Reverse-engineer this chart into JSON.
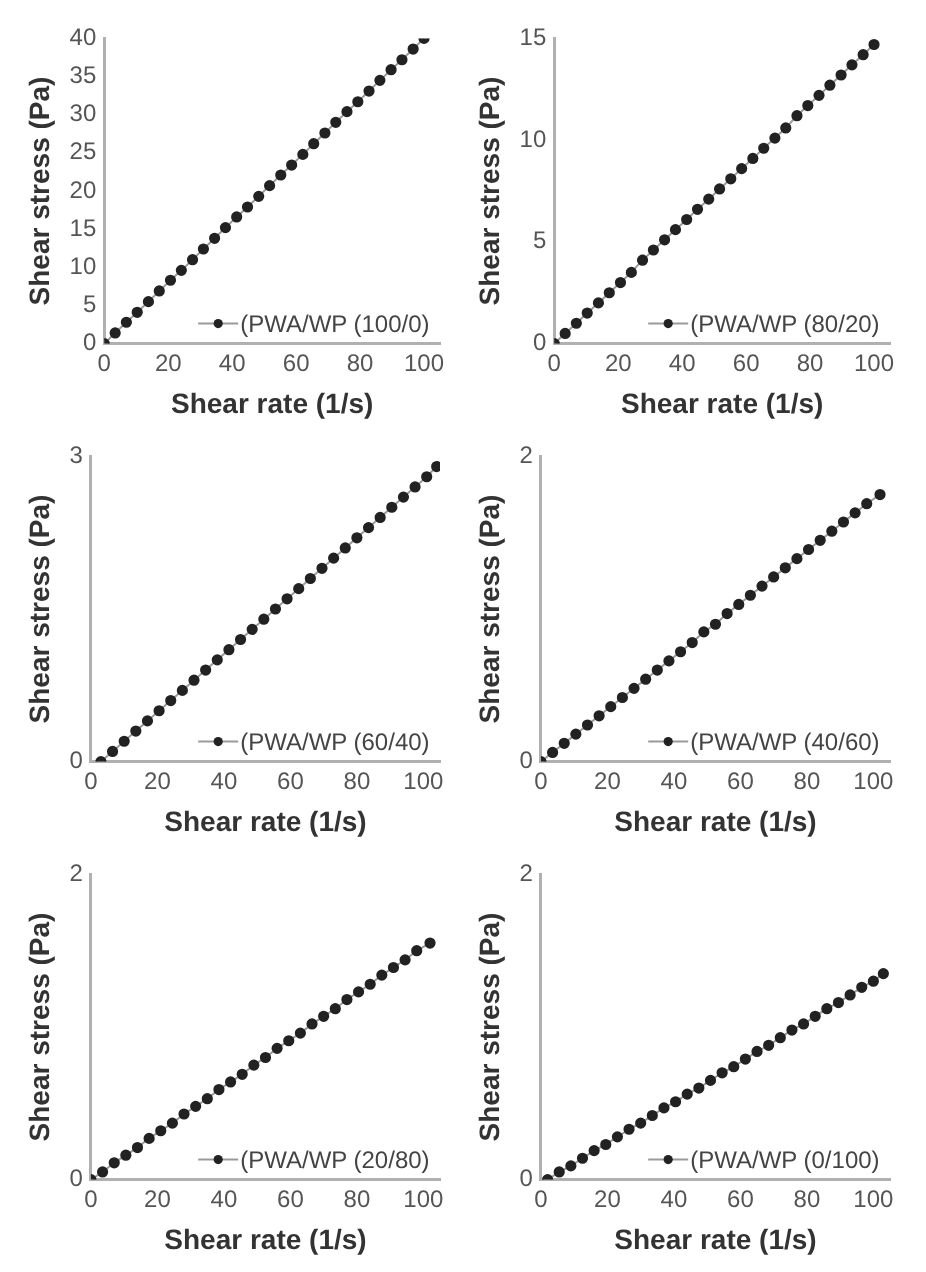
{
  "chart_data": [
    {
      "type": "line",
      "xlabel": "Shear rate (1/s)",
      "ylabel": "Shear stress (Pa)",
      "x": [
        0,
        3.4,
        6.9,
        10.3,
        13.8,
        17.2,
        20.7,
        24.1,
        27.6,
        31,
        34.5,
        37.9,
        41.4,
        44.8,
        48.3,
        51.7,
        55.2,
        58.6,
        62.1,
        65.5,
        69,
        72.4,
        75.9,
        79.3,
        82.8,
        86.2,
        89.7,
        93.1,
        96.6,
        100
      ],
      "series": [
        {
          "name": "(PWA/WP (100/0)",
          "color": "#222222",
          "values": [
            0,
            1.4,
            2.8,
            4.1,
            5.5,
            6.9,
            8.3,
            9.6,
            11,
            12.4,
            13.8,
            15.2,
            16.6,
            17.9,
            19.3,
            20.7,
            22.1,
            23.4,
            24.8,
            26.2,
            27.6,
            29,
            30.4,
            31.7,
            33.1,
            34.5,
            35.9,
            37.2,
            38.6,
            40
          ]
        }
      ],
      "xlim": [
        0,
        105
      ],
      "xticks": [
        0,
        20,
        40,
        60,
        80,
        100
      ],
      "ylim": [
        0,
        40
      ],
      "yticks": [
        0,
        5,
        10,
        15,
        20,
        25,
        30,
        35,
        40
      ],
      "grid": false,
      "legend": "bottom right",
      "marker": "circle"
    },
    {
      "type": "line",
      "xlabel": "Shear rate (1/s)",
      "ylabel": "Shear stress (Pa)",
      "x": [
        0,
        3.4,
        6.9,
        10.3,
        13.8,
        17.2,
        20.7,
        24.1,
        27.6,
        31,
        34.5,
        37.9,
        41.4,
        44.8,
        48.3,
        51.7,
        55.2,
        58.6,
        62.1,
        65.5,
        69,
        72.4,
        75.9,
        79.3,
        82.8,
        86.2,
        89.7,
        93.1,
        96.6,
        100
      ],
      "series": [
        {
          "name": "(PWA/WP (80/20)",
          "color": "#222222",
          "values": [
            0,
            0.5,
            1,
            1.5,
            2,
            2.5,
            3,
            3.5,
            4.1,
            4.6,
            5.1,
            5.6,
            6.1,
            6.6,
            7.1,
            7.6,
            8.1,
            8.6,
            9.1,
            9.6,
            10.1,
            10.6,
            11.2,
            11.7,
            12.2,
            12.7,
            13.2,
            13.7,
            14.2,
            14.7
          ]
        }
      ],
      "xlim": [
        0,
        105
      ],
      "xticks": [
        0,
        20,
        40,
        60,
        80,
        100
      ],
      "ylim": [
        0,
        15
      ],
      "yticks": [
        0,
        5,
        10,
        15
      ],
      "grid": false,
      "legend": "bottom right",
      "marker": "circle"
    },
    {
      "type": "line",
      "xlabel": "Shear rate (1/s)",
      "ylabel": "Shear stress (Pa)",
      "x": [
        3,
        6.5,
        10,
        13.5,
        17,
        20.5,
        24,
        27.5,
        31,
        34.5,
        38,
        41.5,
        45,
        48.5,
        52,
        55.5,
        59,
        62.5,
        66,
        69.5,
        73,
        76.5,
        80,
        83.5,
        87,
        90.5,
        94,
        97.5,
        101,
        104
      ],
      "series": [
        {
          "name": "(PWA/WP (60/40)",
          "color": "#222222",
          "values": [
            0,
            0.1,
            0.2,
            0.3,
            0.4,
            0.5,
            0.6,
            0.7,
            0.8,
            0.9,
            1,
            1.1,
            1.2,
            1.3,
            1.4,
            1.5,
            1.6,
            1.7,
            1.8,
            1.9,
            2,
            2.1,
            2.2,
            2.3,
            2.4,
            2.5,
            2.6,
            2.7,
            2.8,
            2.9
          ]
        }
      ],
      "xlim": [
        0,
        105
      ],
      "xticks": [
        0,
        20,
        40,
        60,
        80,
        100
      ],
      "ylim": [
        0,
        3
      ],
      "yticks": [
        0,
        3
      ],
      "grid": false,
      "legend": "bottom right",
      "marker": "circle"
    },
    {
      "type": "line",
      "xlabel": "Shear rate (1/s)",
      "ylabel": "Shear stress (Pa)",
      "x": [
        0,
        3.5,
        7,
        10.5,
        14,
        17.5,
        21,
        24.5,
        28,
        31.5,
        35,
        38.5,
        42,
        45.5,
        49,
        52.5,
        56,
        59.5,
        63,
        66.5,
        70,
        73.5,
        77,
        80.5,
        84,
        87.5,
        91,
        94.5,
        98,
        102
      ],
      "series": [
        {
          "name": "(PWA/WP (40/60)",
          "color": "#222222",
          "values": [
            0,
            0.06,
            0.12,
            0.18,
            0.24,
            0.3,
            0.36,
            0.42,
            0.48,
            0.54,
            0.6,
            0.66,
            0.72,
            0.78,
            0.85,
            0.9,
            0.97,
            1.03,
            1.09,
            1.15,
            1.21,
            1.27,
            1.33,
            1.39,
            1.45,
            1.51,
            1.57,
            1.63,
            1.69,
            1.75
          ]
        }
      ],
      "xlim": [
        0,
        105
      ],
      "xticks": [
        0,
        20,
        40,
        60,
        80,
        100
      ],
      "ylim": [
        0,
        2
      ],
      "yticks": [
        0,
        2
      ],
      "grid": false,
      "legend": "bottom right",
      "marker": "circle"
    },
    {
      "type": "line",
      "xlabel": "Shear rate (1/s)",
      "ylabel": "Shear stress (Pa)",
      "x": [
        0,
        3.5,
        7,
        10.5,
        14,
        17.5,
        21,
        24.5,
        28,
        31.5,
        35,
        38.5,
        42,
        45.5,
        49,
        52.5,
        56,
        59.5,
        63,
        66.5,
        70,
        73.5,
        77,
        80.5,
        84,
        87.5,
        91,
        94.5,
        98,
        102
      ],
      "series": [
        {
          "name": "(PWA/WP (20/80)",
          "color": "#222222",
          "values": [
            0,
            0.05,
            0.11,
            0.16,
            0.21,
            0.27,
            0.32,
            0.37,
            0.43,
            0.48,
            0.53,
            0.59,
            0.64,
            0.69,
            0.75,
            0.8,
            0.86,
            0.91,
            0.96,
            1.02,
            1.07,
            1.12,
            1.18,
            1.23,
            1.28,
            1.34,
            1.39,
            1.44,
            1.5,
            1.55
          ]
        }
      ],
      "xlim": [
        0,
        105
      ],
      "xticks": [
        0,
        20,
        40,
        60,
        80,
        100
      ],
      "ylim": [
        0,
        2
      ],
      "yticks": [
        0,
        2
      ],
      "grid": false,
      "legend": "bottom right",
      "marker": "circle"
    },
    {
      "type": "line",
      "xlabel": "Shear rate (1/s)",
      "ylabel": "Shear stress (Pa)",
      "x": [
        2,
        5.5,
        9,
        12.5,
        16,
        19.5,
        23,
        26.5,
        30,
        33.5,
        37,
        40.5,
        44,
        47.5,
        51,
        54.5,
        58,
        61.5,
        65,
        68.5,
        72,
        75.5,
        79,
        82.5,
        86,
        89.5,
        93,
        96.5,
        100,
        103
      ],
      "series": [
        {
          "name": "(PWA/WP (0/100)",
          "color": "#222222",
          "values": [
            0,
            0.05,
            0.09,
            0.14,
            0.19,
            0.23,
            0.28,
            0.33,
            0.37,
            0.42,
            0.47,
            0.51,
            0.56,
            0.6,
            0.65,
            0.7,
            0.74,
            0.79,
            0.84,
            0.88,
            0.93,
            0.98,
            1.02,
            1.07,
            1.12,
            1.16,
            1.21,
            1.26,
            1.3,
            1.35
          ]
        }
      ],
      "xlim": [
        0,
        105
      ],
      "xticks": [
        0,
        20,
        40,
        60,
        80,
        100
      ],
      "ylim": [
        0,
        2
      ],
      "yticks": [
        0,
        2
      ],
      "grid": false,
      "legend": "bottom right",
      "marker": "circle"
    }
  ]
}
